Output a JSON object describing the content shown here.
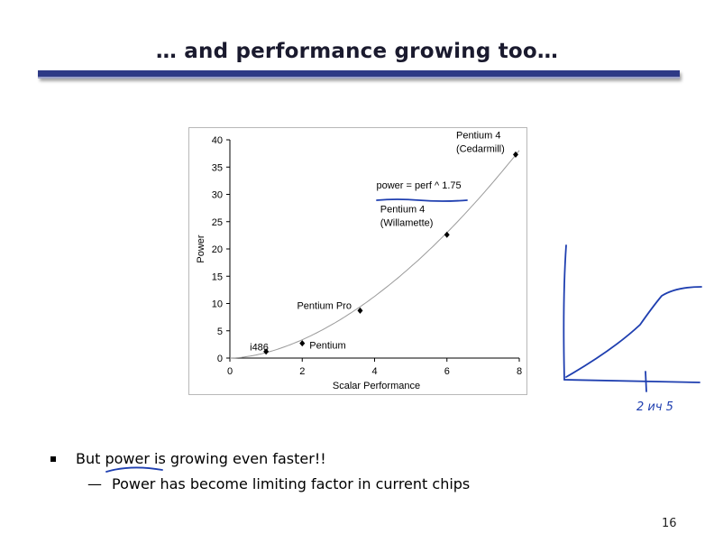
{
  "slide": {
    "title": "… and performance growing too…",
    "bullet": "But power is growing even faster!!",
    "sub_bullet": "Power has become limiting factor in current chips",
    "sub_dash": "—",
    "page_number": "16",
    "handwriting": "2 ич 5"
  },
  "chart_data": {
    "type": "scatter",
    "xlabel": "Scalar Performance",
    "ylabel": "Power",
    "xlim": [
      0,
      8
    ],
    "ylim": [
      0,
      40
    ],
    "xticks": [
      0,
      2,
      4,
      6,
      8
    ],
    "yticks": [
      0,
      5,
      10,
      15,
      20,
      25,
      30,
      35,
      40
    ],
    "grid": false,
    "points": [
      {
        "x": 1,
        "y": 1.2,
        "label": "i486"
      },
      {
        "x": 2,
        "y": 2.7,
        "label": "Pentium"
      },
      {
        "x": 3.6,
        "y": 8.7,
        "label": "Pentium Pro"
      },
      {
        "x": 6,
        "y": 22.6,
        "label": "Pentium 4\n(Willamette)"
      },
      {
        "x": 7.9,
        "y": 37.3,
        "label": "Pentium 4\n(Cedarmill)"
      }
    ],
    "trendline": {
      "label": "power = perf ^ 1.75",
      "exponent": 1.75,
      "coef": 1.0
    },
    "colors": {
      "points": "#000000",
      "trend": "#9a9a9a",
      "ink": "#1f3fb0"
    }
  }
}
